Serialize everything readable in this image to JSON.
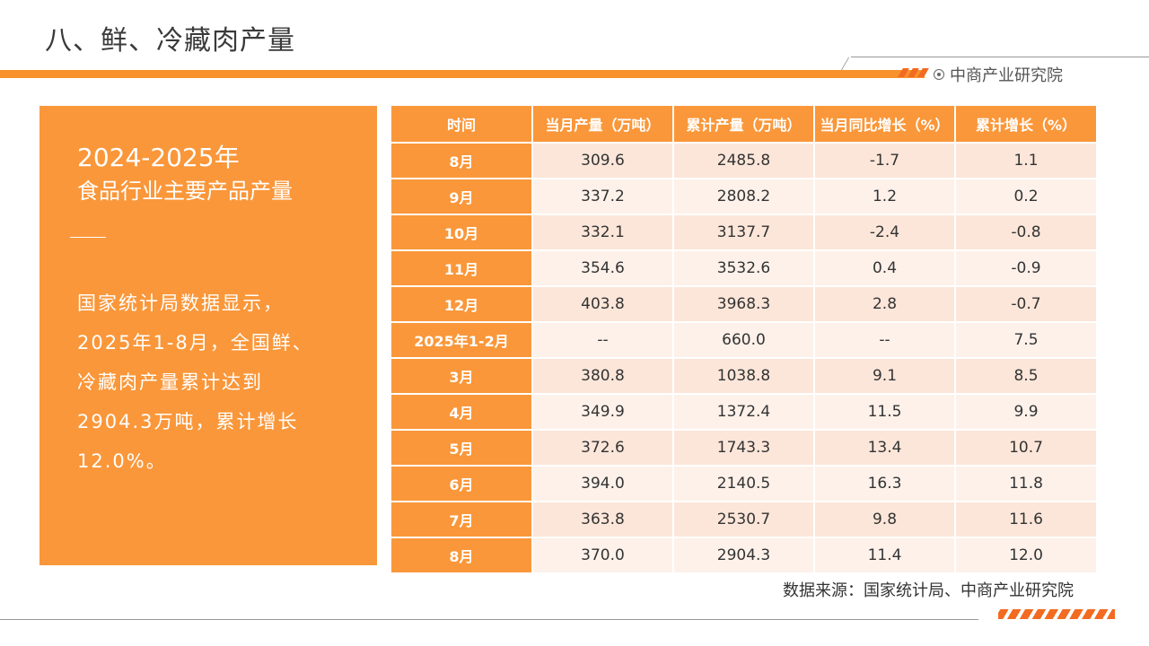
{
  "header": {
    "title": "八、鲜、冷藏肉产量",
    "brand": "中商产业研究院"
  },
  "summary": {
    "period": "2024-2025年",
    "heading": "食品行业主要产品产量",
    "text": "国家统计局数据显示，2025年1-8月，全国鲜、冷藏肉产量累计达到2904.3万吨，累计增长12.0%。"
  },
  "table": {
    "headers": [
      "时间",
      "当月产量（万吨）",
      "累计产量（万吨）",
      "当月同比增长（%）",
      "累计增长（%）"
    ],
    "rows": [
      [
        "8月",
        "309.6",
        "2485.8",
        "-1.7",
        "1.1"
      ],
      [
        "9月",
        "337.2",
        "2808.2",
        "1.2",
        "0.2"
      ],
      [
        "10月",
        "332.1",
        "3137.7",
        "-2.4",
        "-0.8"
      ],
      [
        "11月",
        "354.6",
        "3532.6",
        "0.4",
        "-0.9"
      ],
      [
        "12月",
        "403.8",
        "3968.3",
        "2.8",
        "-0.7"
      ],
      [
        "2025年1-2月",
        "--",
        "660.0",
        "--",
        "7.5"
      ],
      [
        "3月",
        "380.8",
        "1038.8",
        "9.1",
        "8.5"
      ],
      [
        "4月",
        "349.9",
        "1372.4",
        "11.5",
        "9.9"
      ],
      [
        "5月",
        "372.6",
        "1743.3",
        "13.4",
        "10.7"
      ],
      [
        "6月",
        "394.0",
        "2140.5",
        "16.3",
        "11.8"
      ],
      [
        "7月",
        "363.8",
        "2530.7",
        "9.8",
        "11.6"
      ],
      [
        "8月",
        "370.0",
        "2904.3",
        "11.4",
        "12.0"
      ]
    ]
  },
  "footer": {
    "source": "数据来源：国家统计局、中商产业研究院"
  },
  "colors": {
    "accent": "#fa973a",
    "header_bar": "#f7922e",
    "row_light": "#fdf1ea",
    "row_dark": "#fce6d9",
    "stripe": "#f26b21"
  }
}
